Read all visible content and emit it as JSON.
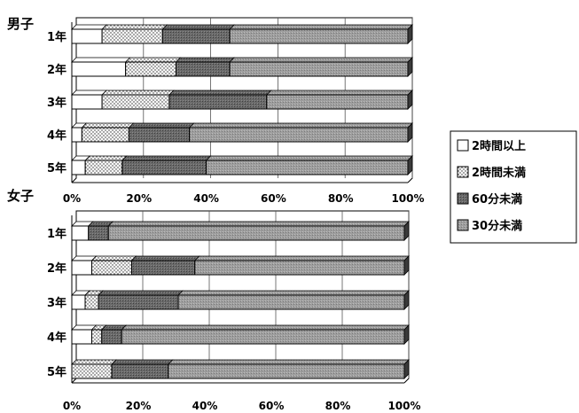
{
  "chart_data": [
    {
      "type": "bar",
      "orientation": "horizontal",
      "stacked": "percent",
      "group_label": "男子",
      "categories": [
        "1年",
        "2年",
        "3年",
        "4年",
        "5年"
      ],
      "series": [
        {
          "name": "2時間以上",
          "values": [
            9,
            16,
            9,
            3,
            4
          ]
        },
        {
          "name": "2時間未満",
          "values": [
            18,
            15,
            20,
            14,
            11
          ]
        },
        {
          "name": "60分未満",
          "values": [
            20,
            16,
            29,
            18,
            25
          ]
        },
        {
          "name": "30分未満",
          "values": [
            53,
            53,
            42,
            65,
            60
          ]
        }
      ],
      "xlim": [
        0,
        100
      ],
      "ticks": [
        "0%",
        "20%",
        "40%",
        "60%",
        "80%",
        "100%"
      ],
      "grid": true
    },
    {
      "type": "bar",
      "orientation": "horizontal",
      "stacked": "percent",
      "group_label": "女子",
      "categories": [
        "1年",
        "2年",
        "3年",
        "4年",
        "5年"
      ],
      "series": [
        {
          "name": "2時間以上",
          "values": [
            5,
            6,
            4,
            6,
            0
          ]
        },
        {
          "name": "2時間未満",
          "values": [
            0,
            12,
            4,
            3,
            12
          ]
        },
        {
          "name": "60分未満",
          "values": [
            6,
            19,
            24,
            6,
            17
          ]
        },
        {
          "name": "30分未満",
          "values": [
            89,
            63,
            68,
            85,
            71
          ]
        }
      ],
      "xlim": [
        0,
        100
      ],
      "ticks": [
        "0%",
        "20%",
        "40%",
        "60%",
        "80%",
        "100%"
      ],
      "grid": true
    }
  ],
  "legend": {
    "position": "right",
    "items": [
      "2時間以上",
      "2時間未満",
      "60分未満",
      "30分未満"
    ]
  },
  "colors": {
    "2時間以上": "#ffffff",
    "2時間未満": "#f2f2f2",
    "60分未満": "#6e6e6e",
    "30分未満": "#9a9a9a",
    "frame": "#000000",
    "grid": "#444444"
  }
}
